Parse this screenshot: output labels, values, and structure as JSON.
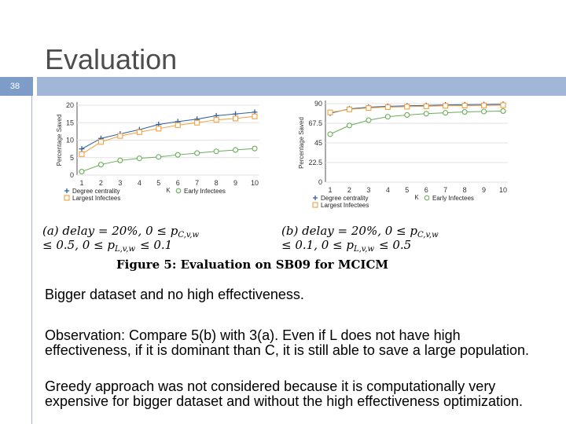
{
  "slide": {
    "title": "Evaluation",
    "number": "38"
  },
  "colors": {
    "bar_light": "#a0b7d8",
    "bar_dark": "#7d9dc8",
    "degree": "#2f5f9e",
    "largest": "#f0a040",
    "early": "#6aad5a"
  },
  "figure": {
    "caption": "Figure 5: Evaluation on SB09 for MCICM",
    "sub_a_line1": "(a) delay = 20%, 0 ≤ p",
    "sub_a_sub1": "C,v,w",
    "sub_a_line2": "≤ 0.5, 0 ≤ p",
    "sub_a_sub2": "L,v,w",
    "sub_a_line2_end": "≤ 0.1",
    "sub_b_line1": "(b) delay = 20%, 0 ≤ p",
    "sub_b_sub1": "C,v,w",
    "sub_b_line2": "≤ 0.1, 0 ≤ p",
    "sub_b_sub2": "L,v,w",
    "sub_b_line2_end": "≤ 0.5"
  },
  "chart_data": [
    {
      "type": "line",
      "ylabel": "Percentage Saved",
      "xlabel": "K",
      "x": [
        1,
        2,
        3,
        4,
        5,
        6,
        7,
        8,
        9,
        10
      ],
      "ylim": [
        0,
        20
      ],
      "yticks": [
        0,
        5,
        10,
        15,
        20
      ],
      "series": [
        {
          "name": "Degree centrality",
          "values": [
            7.5,
            10.5,
            11.8,
            13,
            14.5,
            15.3,
            16,
            17,
            17.5,
            18
          ]
        },
        {
          "name": "Largest Infectees",
          "values": [
            6,
            9.5,
            11.2,
            12.3,
            13.3,
            14.3,
            15,
            15.8,
            16.2,
            16.8
          ]
        },
        {
          "name": "Early Infectees",
          "values": [
            1,
            3,
            4.2,
            4.8,
            5.2,
            5.8,
            6.3,
            6.8,
            7.2,
            7.6
          ]
        }
      ],
      "legend": "bottom"
    },
    {
      "type": "line",
      "ylabel": "Percentage Saved",
      "xlabel": "K",
      "x": [
        1,
        2,
        3,
        4,
        5,
        6,
        7,
        8,
        9,
        10
      ],
      "ylim": [
        0,
        90
      ],
      "yticks": [
        0,
        22.5,
        45,
        67.5,
        90
      ],
      "series": [
        {
          "name": "Degree centrality",
          "values": [
            79,
            84,
            86,
            87,
            87.5,
            88,
            88.5,
            88.8,
            89,
            89.3
          ]
        },
        {
          "name": "Largest Infectees",
          "values": [
            80,
            83.5,
            85,
            86,
            86.5,
            87,
            87.5,
            87.8,
            88,
            88.3
          ]
        },
        {
          "name": "Early Infectees",
          "values": [
            55,
            65,
            71,
            75,
            77,
            78.5,
            79.5,
            80.5,
            81,
            81.5
          ]
        }
      ],
      "legend": "bottom"
    }
  ],
  "body": {
    "p1": "Bigger dataset and no high effectiveness.",
    "p2": "Observation: Compare 5(b) with 3(a). Even if L does not have high effectiveness, if it is dominant than C, it is still able to save a large population.",
    "p3": "Greedy approach was not considered because it is computationally very expensive for bigger dataset and without the high effectiveness optimization."
  }
}
